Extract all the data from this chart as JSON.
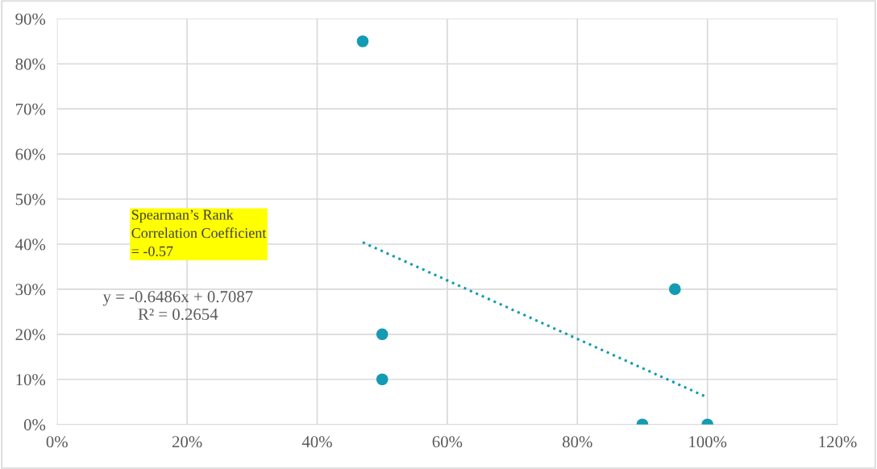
{
  "chart_data": {
    "type": "scatter",
    "xlim": [
      0,
      120
    ],
    "ylim": [
      0,
      90
    ],
    "xticks": [
      {
        "value": 0,
        "label": "0%"
      },
      {
        "value": 20,
        "label": "20%"
      },
      {
        "value": 40,
        "label": "40%"
      },
      {
        "value": 60,
        "label": "60%"
      },
      {
        "value": 80,
        "label": "80%"
      },
      {
        "value": 100,
        "label": "100%"
      },
      {
        "value": 120,
        "label": "120%"
      }
    ],
    "yticks": [
      {
        "value": 0,
        "label": "0%"
      },
      {
        "value": 10,
        "label": "10%"
      },
      {
        "value": 20,
        "label": "20%"
      },
      {
        "value": 30,
        "label": "30%"
      },
      {
        "value": 40,
        "label": "40%"
      },
      {
        "value": 50,
        "label": "50%"
      },
      {
        "value": 60,
        "label": "60%"
      },
      {
        "value": 70,
        "label": "70%"
      },
      {
        "value": 80,
        "label": "80%"
      },
      {
        "value": 90,
        "label": "90%"
      }
    ],
    "grid": true,
    "series": [
      {
        "color": "#139bb3",
        "marker": "circle",
        "x": [
          47,
          50,
          50,
          95,
          90,
          100
        ],
        "values": [
          85,
          20,
          10,
          30,
          0,
          0
        ]
      },
      {
        "type": "line",
        "color": "#139bb3",
        "line_style": "dotted",
        "marker": "none",
        "x": [
          47,
          100
        ],
        "values": [
          40.4,
          6.0
        ]
      }
    ],
    "annotations": [
      "Spearman’s Rank\nCorrelation Coefficient\n= -0.57",
      "y = -0.6486x + 0.7087\nR² = 0.2654"
    ]
  }
}
